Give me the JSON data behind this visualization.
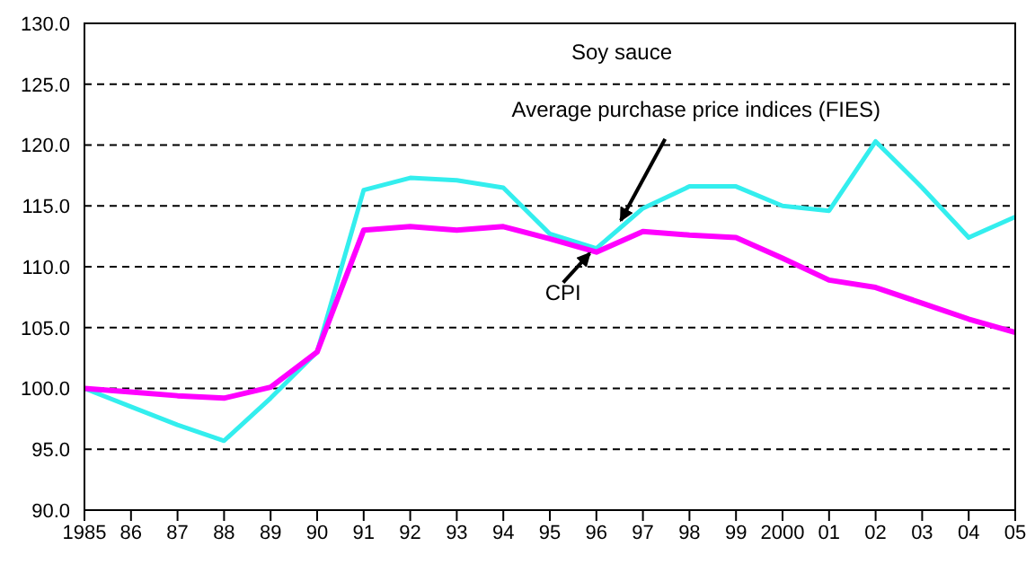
{
  "chart_data": {
    "type": "line",
    "title": "Soy sauce",
    "categories": [
      "1985",
      "86",
      "87",
      "88",
      "89",
      "90",
      "91",
      "92",
      "93",
      "94",
      "95",
      "96",
      "97",
      "98",
      "99",
      "2000",
      "01",
      "02",
      "03",
      "04",
      "05"
    ],
    "series": [
      {
        "name": "Average purchase price indices (FIES)",
        "color": "#33eeee",
        "values": [
          100,
          98.5,
          97,
          95.7,
          99.2,
          103,
          116.3,
          117.3,
          117.1,
          116.5,
          112.7,
          111.5,
          114.8,
          116.6,
          116.6,
          115,
          114.6,
          120.3,
          116.5,
          112.4,
          114.1
        ]
      },
      {
        "name": "CPI",
        "color": "#ff00ff",
        "values": [
          100,
          99.7,
          99.4,
          99.2,
          100.1,
          103,
          113,
          113.3,
          113,
          113.3,
          112.3,
          111.2,
          112.9,
          112.6,
          112.4,
          110.7,
          108.9,
          108.3,
          107,
          105.7,
          104.6
        ]
      }
    ],
    "ylim": [
      90,
      130
    ],
    "yticks": [
      {
        "value": 90,
        "label": "90.0"
      },
      {
        "value": 95,
        "label": "95.0"
      },
      {
        "value": 100,
        "label": "100.0"
      },
      {
        "value": 105,
        "label": "105.0"
      },
      {
        "value": 110,
        "label": "110.0"
      },
      {
        "value": 115,
        "label": "115.0"
      },
      {
        "value": 120,
        "label": "120.0"
      },
      {
        "value": 125,
        "label": "125.0"
      },
      {
        "value": 130,
        "label": "130.0"
      }
    ],
    "grid": "y",
    "legend": false,
    "marker": "none",
    "line_style": "solid"
  }
}
